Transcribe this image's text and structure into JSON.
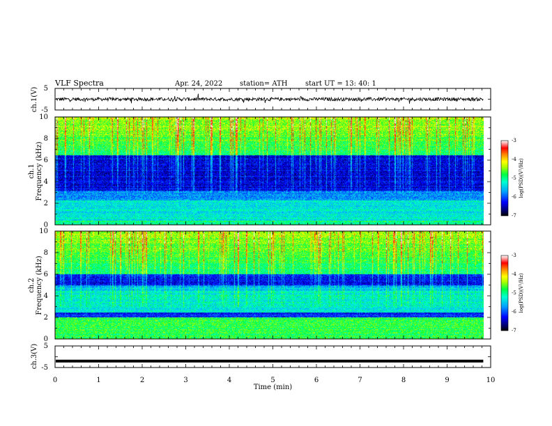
{
  "header": {
    "title": "VLF  Spectra",
    "date": "Apr. 24, 2022",
    "station": "station= ATH",
    "start": "start  UT  =    13: 40: 1"
  },
  "chart_data": [
    {
      "type": "line",
      "panel": "ch1-waveform",
      "ylabel": "ch.1(V)",
      "ylim": [
        -5,
        5
      ],
      "y_ticks": [
        "5",
        "-5"
      ],
      "baseline_value": 0,
      "x_range_min": [
        0,
        9.83
      ],
      "color": "#000000"
    },
    {
      "type": "heatmap",
      "panel": "ch1-spectrogram",
      "ylabel_top": "ch.1",
      "ylabel": "Frequency  (kHz)",
      "ylim": [
        0,
        10
      ],
      "y_ticks": [
        "10",
        "8",
        "6",
        "4",
        "2",
        "0"
      ],
      "x_range_min": [
        0,
        9.83
      ],
      "colorbar": {
        "label": "log(PSD)(V²/Hz)",
        "range": [
          -7,
          -3
        ],
        "ticks": [
          "-3",
          "-4",
          "-5",
          "-6",
          "-7"
        ]
      }
    },
    {
      "type": "heatmap",
      "panel": "ch2-spectrogram",
      "ylabel_top": "ch.2",
      "ylabel": "Frequency  (kHz)",
      "ylim": [
        0,
        10
      ],
      "y_ticks": [
        "10",
        "8",
        "6",
        "4",
        "2",
        "0"
      ],
      "x_range_min": [
        0,
        9.83
      ],
      "colorbar": {
        "label": "log(PSD)(V²/Hz)",
        "range": [
          -7,
          -3
        ],
        "ticks": [
          "-3",
          "-4",
          "-5",
          "-6",
          "-7"
        ]
      }
    },
    {
      "type": "line",
      "panel": "ch3-waveform",
      "ylabel": "ch.3(V)",
      "ylim": [
        -5,
        5
      ],
      "y_ticks": [
        "5",
        "-5"
      ],
      "baseline_value": -2,
      "x_range_min": [
        0,
        9.83
      ],
      "color": "#000000"
    }
  ],
  "x_axis": {
    "label": "Time  (min)",
    "range": [
      0,
      10
    ],
    "ticks": [
      "0",
      "1",
      "2",
      "3",
      "4",
      "5",
      "6",
      "7",
      "8",
      "9",
      "10"
    ]
  }
}
